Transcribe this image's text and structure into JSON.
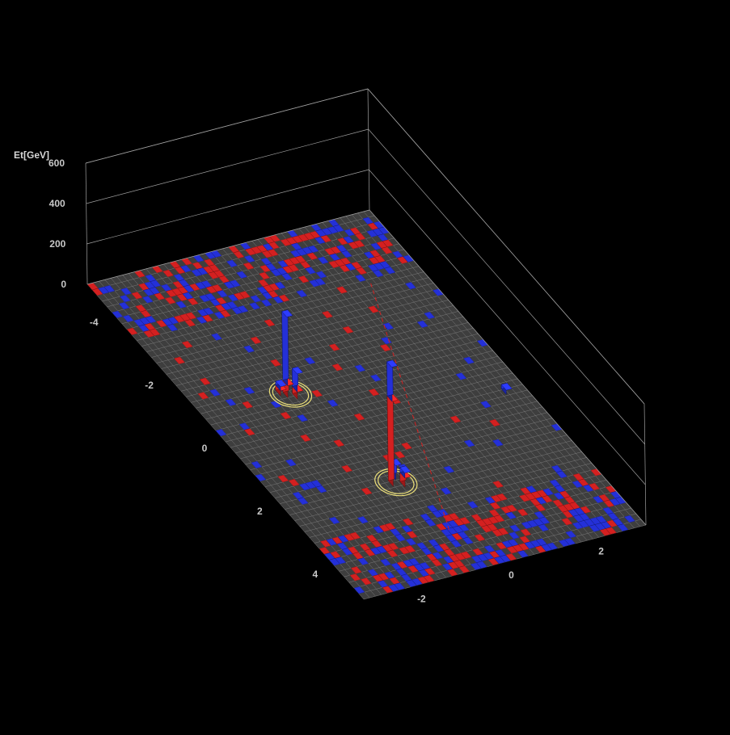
{
  "chart_data": {
    "type": "lego-3d",
    "zlabel": "Et[GeV]",
    "z_ticks": [
      "0",
      "200",
      "400",
      "600"
    ],
    "eta_ticks": [
      "-4",
      "-2",
      "0",
      "2",
      "4"
    ],
    "phi_ticks": [
      "-2",
      "0",
      "2"
    ],
    "zlim": [
      0,
      600
    ],
    "eta_range": [
      -5,
      5
    ],
    "phi_range": [
      -3.14,
      3.14
    ],
    "colors": {
      "background": "#000000",
      "frame": "#a0a0a0",
      "grid": "#7a7a7a",
      "em_tower": "#d42020",
      "had_tower": "#2430d8",
      "jet_ring": "#ece07a",
      "met_line": "#d42020"
    },
    "jets": [
      {
        "eta": -0.8,
        "phi": -1.2,
        "ring_radius": 0.4
      },
      {
        "eta": 2.2,
        "phi": -0.7,
        "ring_radius": 0.4
      }
    ],
    "towers": [
      {
        "eta": 2.2,
        "phi": -0.75,
        "em": 420,
        "had": 170
      },
      {
        "eta": 2.05,
        "phi": -0.6,
        "em": 0,
        "had": 70
      },
      {
        "eta": 2.3,
        "phi": -0.55,
        "em": 45,
        "had": 25
      },
      {
        "eta": -0.8,
        "phi": -1.25,
        "em": 60,
        "had": 340
      },
      {
        "eta": -0.7,
        "phi": -1.1,
        "em": 35,
        "had": 90
      },
      {
        "eta": -0.9,
        "phi": -1.35,
        "em": 25,
        "had": 20
      },
      {
        "eta": 0.6,
        "phi": 2.75,
        "em": 0,
        "had": 22
      }
    ]
  }
}
